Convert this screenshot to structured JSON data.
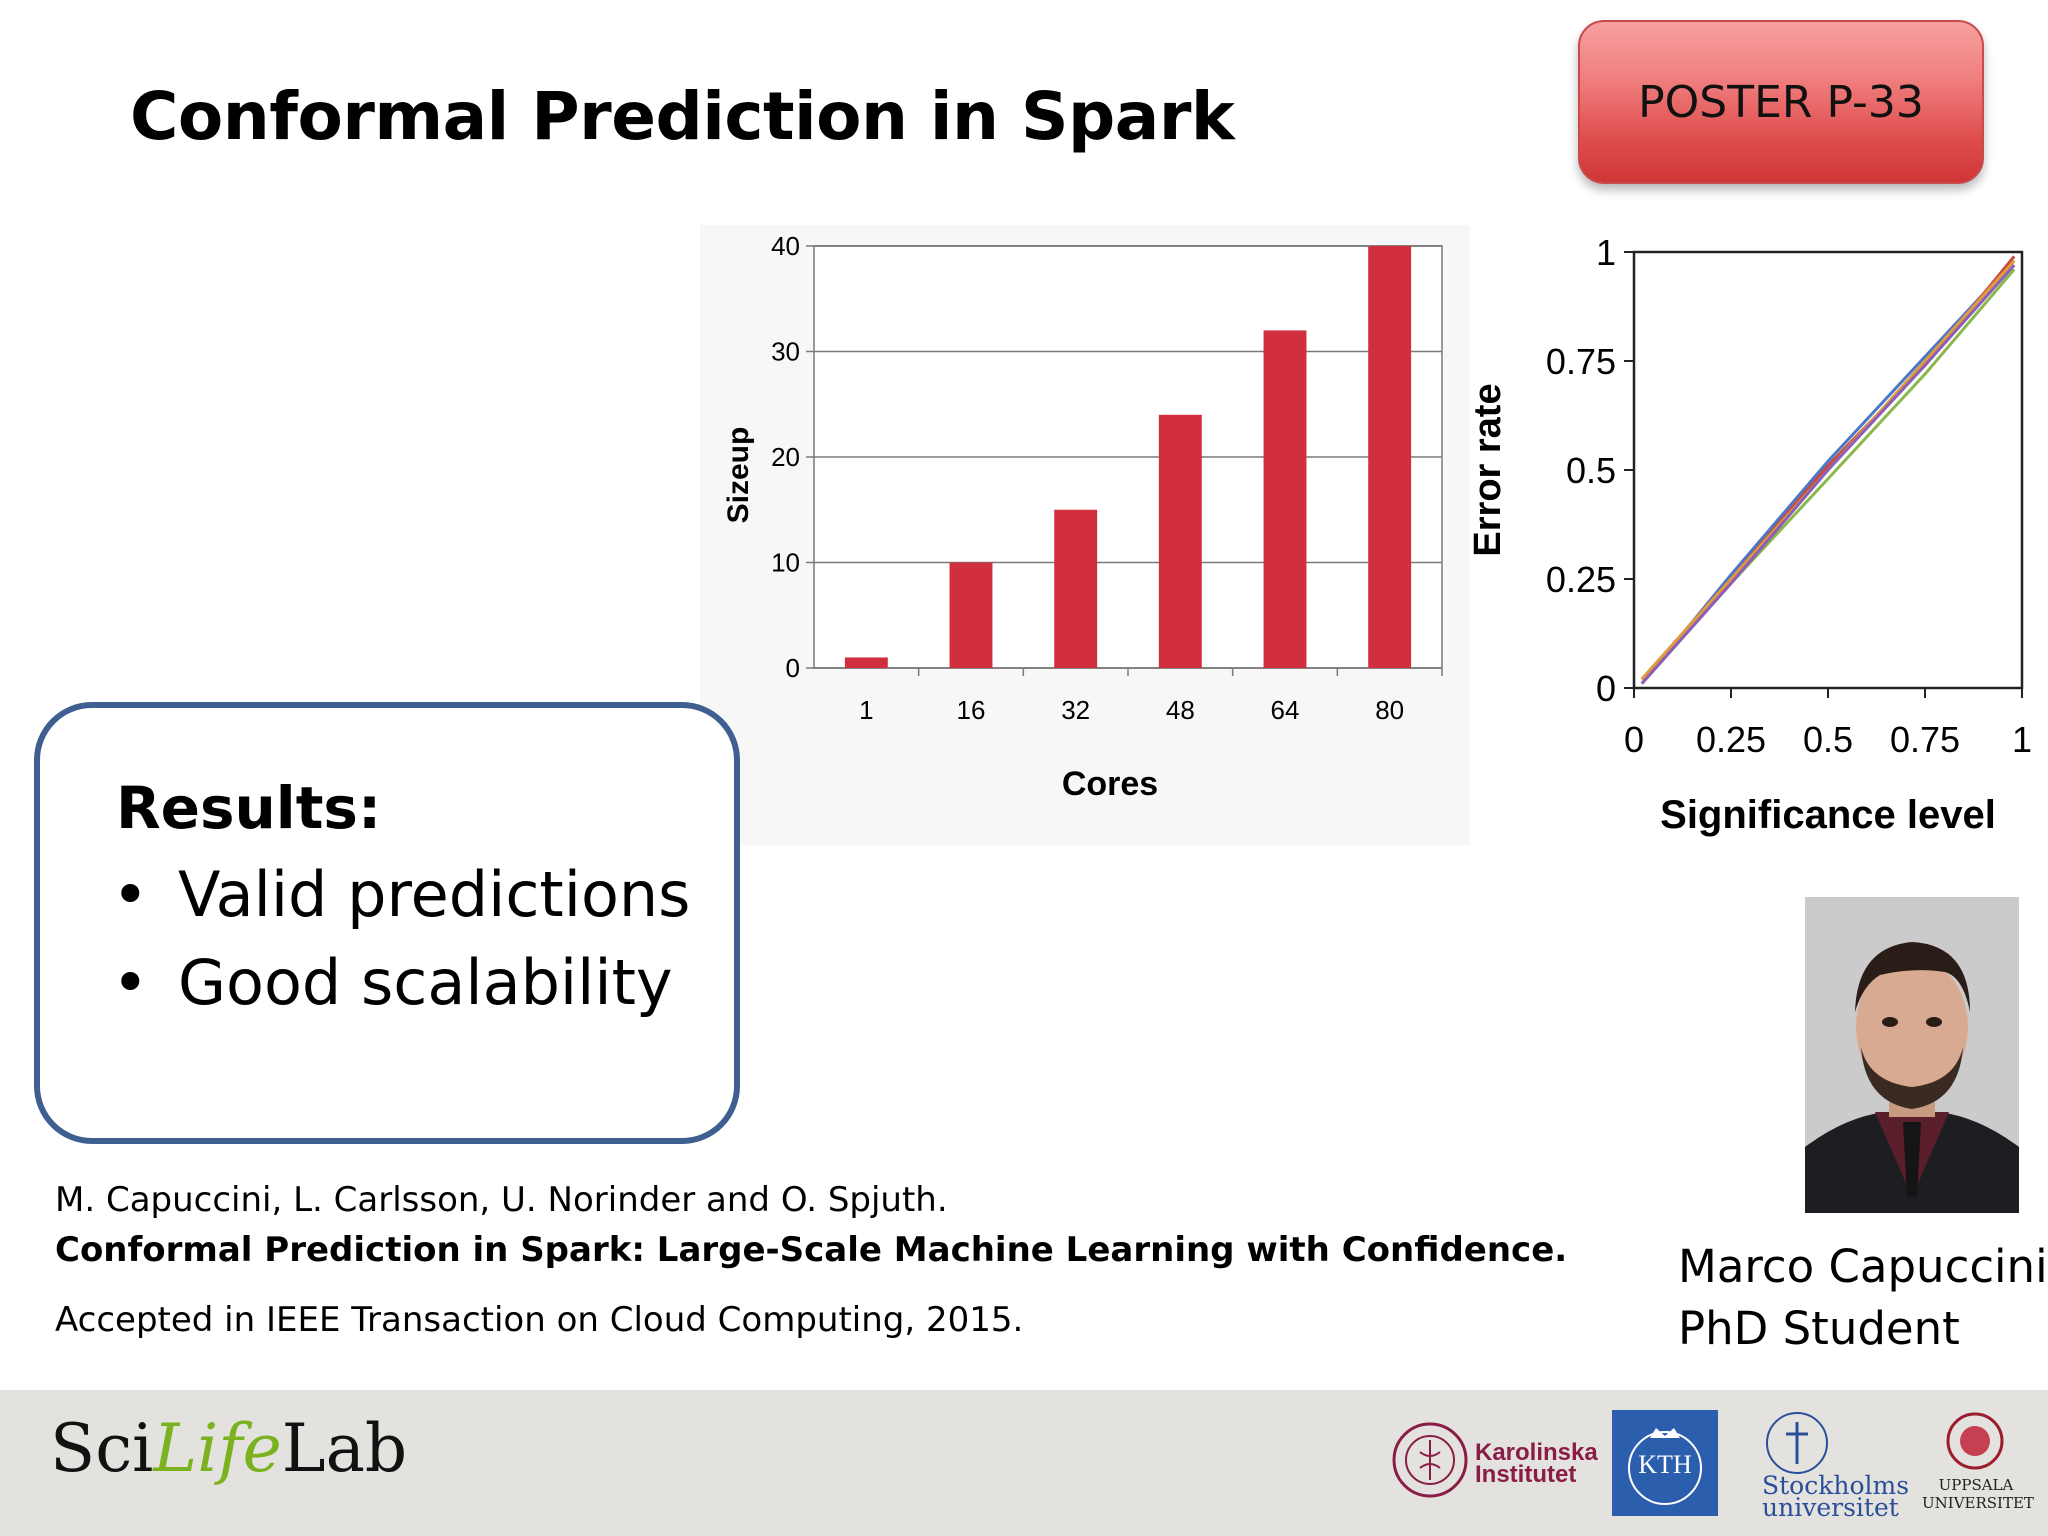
{
  "slide": {
    "title": "Conformal Prediction in Spark",
    "badge": "POSTER P-33"
  },
  "results": {
    "heading": "Results:",
    "bullets": [
      "Valid predictions",
      "Good scalability"
    ],
    "bullet_symbol": "•"
  },
  "reference": {
    "authors": "M. Capuccini, L. Carlsson, U. Norinder and O. Spjuth.",
    "paper_title": "Conformal Prediction in Spark: Large-Scale Machine Learning with Confidence.",
    "venue": "Accepted in IEEE Transaction on Cloud Computing, 2015."
  },
  "person": {
    "name": "Marco Capuccini",
    "role": "PhD Student"
  },
  "footer": {
    "scilifelab": {
      "part1": "Sci",
      "part2": "Life",
      "part3": "Lab"
    },
    "karolinska": {
      "line1": "Karolinska",
      "line2": "Institutet"
    },
    "kth": "KTH",
    "stockholm": {
      "line1": "Stockholms",
      "line2": "universitet"
    },
    "uppsala": {
      "line1": "UPPSALA",
      "line2": "UNIVERSITET"
    }
  },
  "colors": {
    "bar": "#d22f3e",
    "results_border": "#3f5f91",
    "badge": "#e05a5a",
    "footer": "#e3e2df",
    "kth_blue": "#2b5fae"
  },
  "chart_data": [
    {
      "type": "bar",
      "categories": [
        "1",
        "16",
        "32",
        "48",
        "64",
        "80"
      ],
      "values": [
        1,
        10,
        15,
        24,
        32,
        40
      ],
      "xlabel": "Cores",
      "ylabel": "Sizeup",
      "ylim": [
        0,
        40
      ],
      "yticks": [
        0,
        10,
        20,
        30,
        40
      ],
      "grid": true
    },
    {
      "type": "line",
      "xlabel": "Significance level",
      "ylabel": "Error rate",
      "xlim": [
        0,
        1
      ],
      "ylim": [
        0,
        1
      ],
      "xticks": [
        "0",
        "0.25",
        "0.5",
        "0.75",
        "1"
      ],
      "yticks": [
        "0",
        "0.25",
        "0.5",
        "0.75",
        "1"
      ],
      "series": [
        {
          "color": "#4a78c8",
          "x": [
            0.02,
            0.25,
            0.5,
            0.75,
            0.98
          ],
          "y": [
            0.01,
            0.26,
            0.52,
            0.76,
            0.98
          ]
        },
        {
          "color": "#c94a3c",
          "x": [
            0.02,
            0.25,
            0.5,
            0.75,
            0.98
          ],
          "y": [
            0.02,
            0.25,
            0.51,
            0.74,
            0.99
          ]
        },
        {
          "color": "#8ab84a",
          "x": [
            0.02,
            0.25,
            0.5,
            0.75,
            0.98
          ],
          "y": [
            0.01,
            0.24,
            0.48,
            0.72,
            0.96
          ]
        },
        {
          "color": "#e39a3a",
          "x": [
            0.02,
            0.25,
            0.5,
            0.75,
            0.98
          ],
          "y": [
            0.02,
            0.25,
            0.5,
            0.75,
            0.98
          ]
        },
        {
          "color": "#8b5fb8",
          "x": [
            0.02,
            0.25,
            0.5,
            0.75,
            0.98
          ],
          "y": [
            0.01,
            0.24,
            0.5,
            0.74,
            0.97
          ]
        }
      ]
    }
  ]
}
